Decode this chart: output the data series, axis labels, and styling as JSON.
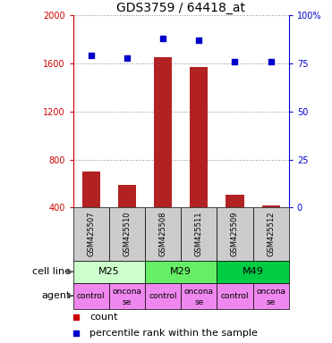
{
  "title": "GDS3759 / 64418_at",
  "samples": [
    "GSM425507",
    "GSM425510",
    "GSM425508",
    "GSM425511",
    "GSM425509",
    "GSM425512"
  ],
  "counts": [
    700,
    590,
    1650,
    1570,
    510,
    420
  ],
  "percentile_ranks": [
    79,
    78,
    88,
    87,
    76,
    76
  ],
  "ylim_left": [
    400,
    2000
  ],
  "yticks_left": [
    400,
    800,
    1200,
    1600,
    2000
  ],
  "ylim_right": [
    0,
    100
  ],
  "yticks_right": [
    0,
    25,
    50,
    75,
    100
  ],
  "bar_color": "#b22222",
  "dot_color": "#0000cc",
  "cell_line_groups": [
    [
      "M25",
      0,
      2
    ],
    [
      "M29",
      2,
      4
    ],
    [
      "M49",
      4,
      6
    ]
  ],
  "cell_line_colors": {
    "M25": "#ccffcc",
    "M29": "#66ee66",
    "M49": "#00cc44"
  },
  "agents": [
    "control",
    "onconase",
    "control",
    "onconase",
    "control",
    "onconase"
  ],
  "agent_color": "#ee88ee",
  "sample_bg_color": "#cccccc",
  "grid_color": "#888888",
  "left_axis_color": "#cc0000",
  "right_axis_color": "#0000cc",
  "legend_count_color": "#cc0000",
  "legend_pct_color": "#0000cc",
  "fig_width": 3.71,
  "fig_height": 3.84,
  "fig_dpi": 100
}
